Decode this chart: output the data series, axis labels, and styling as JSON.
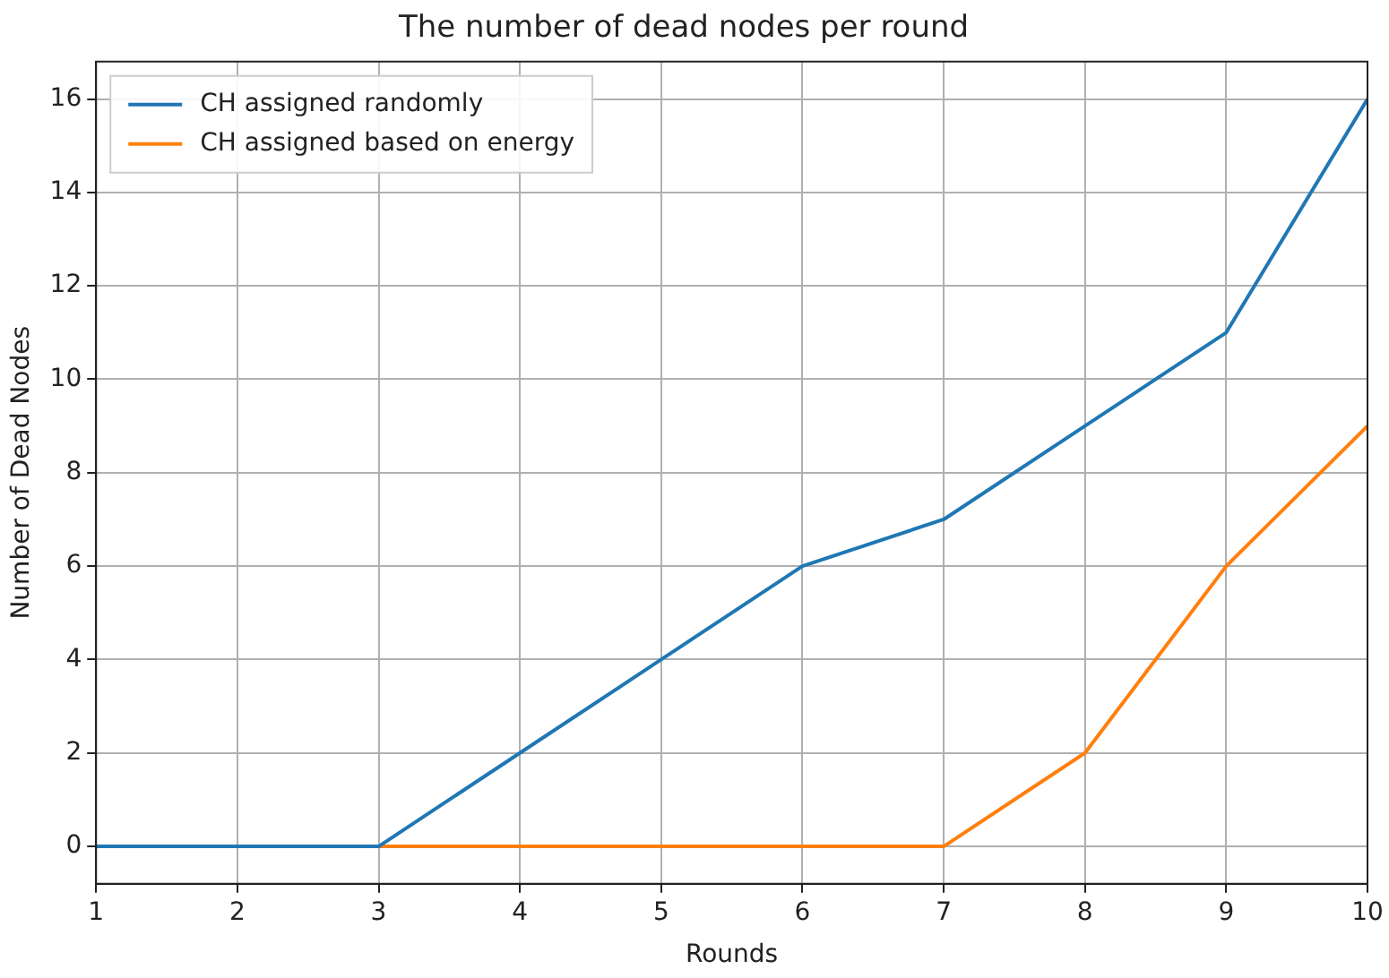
{
  "chart_data": {
    "type": "line",
    "title": "The number of dead nodes per round",
    "xlabel": "Rounds",
    "ylabel": "Number of Dead Nodes",
    "x": [
      1,
      2,
      3,
      4,
      5,
      6,
      7,
      8,
      9,
      10
    ],
    "series": [
      {
        "name": "CH assigned randomly",
        "color": "#1f77b4",
        "values": [
          0,
          0,
          0,
          2,
          4,
          6,
          7,
          9,
          11,
          16
        ]
      },
      {
        "name": "CH assigned based on energy",
        "color": "#ff7f0e",
        "values": [
          0,
          0,
          0,
          0,
          0,
          0,
          0,
          2,
          6,
          9
        ]
      }
    ],
    "xlim": [
      1,
      10
    ],
    "xticks": [
      1,
      2,
      3,
      4,
      5,
      6,
      7,
      8,
      9,
      10
    ],
    "ylim": [
      -0.8,
      16.8
    ],
    "yticks": [
      0,
      2,
      4,
      6,
      8,
      10,
      12,
      14,
      16
    ],
    "grid": true,
    "legend": "top left",
    "marker": "none",
    "line_style": "solid"
  }
}
